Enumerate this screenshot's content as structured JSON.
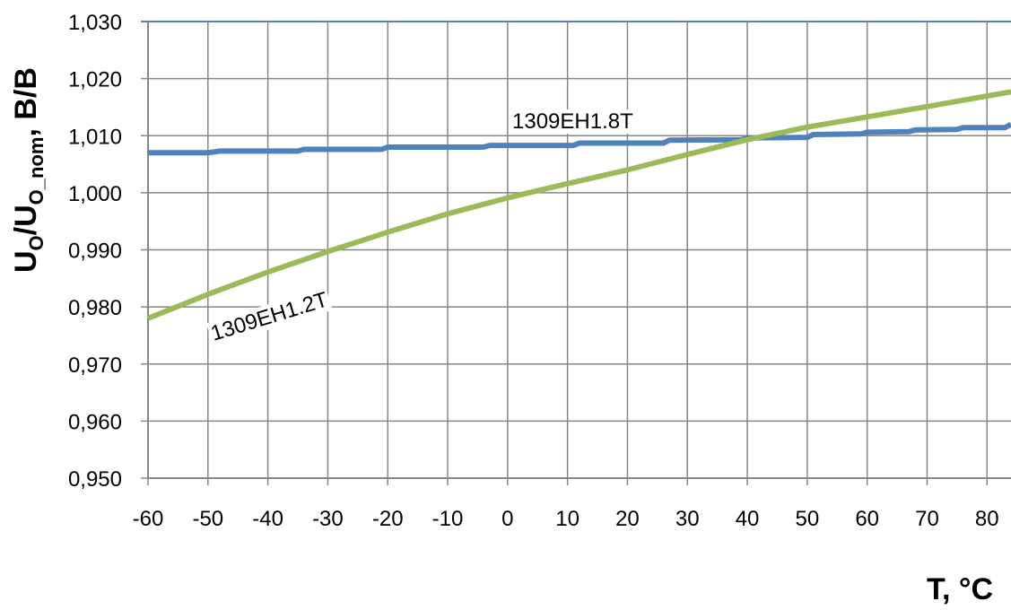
{
  "chart_data": {
    "type": "line",
    "xlabel": "T, °C",
    "ylabel": {
      "u1": "U",
      "s1": "O",
      "mid": "/U",
      "s2": "O_nom",
      "tail": ", B/B"
    },
    "xlim": [
      -60,
      84
    ],
    "ylim": [
      0.95,
      1.03
    ],
    "x_ticks": [
      -60,
      -50,
      -40,
      -30,
      -20,
      -10,
      0,
      10,
      20,
      30,
      40,
      50,
      60,
      70,
      80
    ],
    "x_tick_labels": [
      "-60",
      "-50",
      "-40",
      "-30",
      "-20",
      "-10",
      "0",
      "10",
      "20",
      "30",
      "40",
      "50",
      "60",
      "70",
      "80"
    ],
    "y_ticks": [
      0.95,
      0.96,
      0.97,
      0.98,
      0.99,
      1.0,
      1.01,
      1.02,
      1.03
    ],
    "y_tick_labels": [
      "0,950",
      "0,960",
      "0,970",
      "0,980",
      "0,990",
      "1,000",
      "1,010",
      "1,020",
      "1,030"
    ],
    "grid": true,
    "series": [
      {
        "name": "1309EH1.8T",
        "color": "#4f81bd",
        "x": [
          -60,
          -50,
          -48,
          -35,
          -34,
          -21,
          -20,
          -4,
          -3,
          11,
          12,
          26,
          27,
          39,
          40,
          50,
          51,
          59,
          60,
          67,
          68,
          75,
          76,
          83,
          84
        ],
        "y": [
          1.007,
          1.007,
          1.0073,
          1.0073,
          1.0076,
          1.0076,
          1.008,
          1.008,
          1.0083,
          1.0083,
          1.0087,
          1.0087,
          1.0092,
          1.0093,
          1.0096,
          1.0097,
          1.0102,
          1.0103,
          1.0106,
          1.0107,
          1.011,
          1.0111,
          1.0114,
          1.0114,
          1.012
        ]
      },
      {
        "name": "1309EH1.2T",
        "color": "#9bbb59",
        "x": [
          -60,
          -50,
          -40,
          -30,
          -20,
          -10,
          0,
          10,
          20,
          30,
          40,
          50,
          60,
          70,
          84
        ],
        "y": [
          0.978,
          0.9822,
          0.9861,
          0.9897,
          0.9931,
          0.9963,
          0.9991,
          1.0016,
          1.004,
          1.0067,
          1.0093,
          1.0115,
          1.0133,
          1.0151,
          1.0177
        ]
      }
    ]
  }
}
